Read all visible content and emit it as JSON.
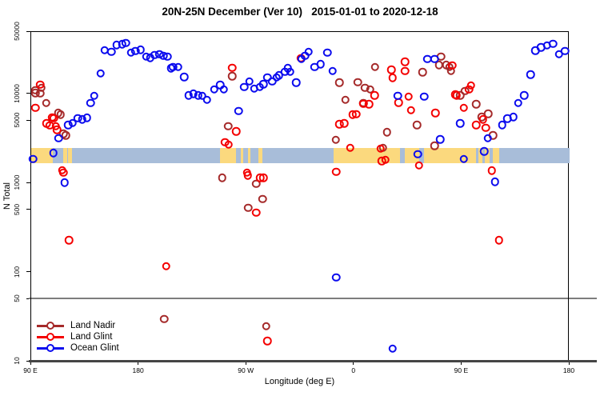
{
  "title": "20N-25N December (Ver 10)   2015-01-01 to 2020-12-18",
  "chart_data": {
    "type": "scatter",
    "title": "20N-25N December (Ver 10)   2015-01-01 to 2020-12-18",
    "xlabel": "Longitude (deg E)",
    "ylabel": "N Total",
    "x_axis": {
      "range": [
        90,
        540
      ],
      "ticks": [
        90,
        180,
        270,
        360,
        450,
        540
      ],
      "tick_labels": [
        "90 E",
        "180",
        "90 W",
        "0",
        "90 E",
        "180"
      ]
    },
    "y_axis": {
      "scale": "log",
      "range": [
        10,
        50000
      ],
      "ticks": [
        50000,
        10000,
        5000,
        1000,
        500,
        100,
        50,
        10
      ],
      "tick_labels": [
        "50000",
        "10000",
        "5000",
        "1000",
        "500",
        "100",
        "50",
        "10"
      ]
    },
    "threshold_line": {
      "value": 50,
      "color": "#7d7d7d"
    },
    "map_band": {
      "y_range": [
        1700,
        2500
      ],
      "ocean_color": "#a8bdd9",
      "land_color": "#fbd97e",
      "land_segments_deg": [
        [
          90,
          108
        ],
        [
          116.5,
          120
        ],
        [
          121,
          124
        ],
        [
          248,
          261
        ],
        [
          265.5,
          267.5
        ],
        [
          271,
          273.5
        ],
        [
          280,
          283
        ],
        [
          343,
          398
        ],
        [
          402,
          414
        ],
        [
          418,
          462
        ],
        [
          464,
          467
        ],
        [
          469,
          473
        ],
        [
          476,
          481
        ]
      ]
    },
    "legend": {
      "position": "bottom-left",
      "entries": [
        "Land Nadir",
        "Land Glint",
        "Ocean Glint"
      ]
    },
    "series": [
      {
        "name": "Land Nadir",
        "color": "#a52a2a",
        "points": [
          [
            93.5,
            11100
          ],
          [
            98.5,
            11800
          ],
          [
            97.5,
            10200
          ],
          [
            93.5,
            10300
          ],
          [
            102.5,
            7950
          ],
          [
            112.5,
            6170
          ],
          [
            114.5,
            5890
          ],
          [
            117,
            3590
          ],
          [
            119,
            3470
          ],
          [
            249.5,
            1150
          ],
          [
            278,
            990
          ],
          [
            283.5,
            670
          ],
          [
            271.5,
            533
          ],
          [
            201,
            30
          ],
          [
            286.5,
            25
          ],
          [
            258,
            16000
          ],
          [
            254.5,
            4400
          ],
          [
            377.5,
            20200
          ],
          [
            417,
            17700
          ],
          [
            432.5,
            26600
          ],
          [
            431,
            21400
          ],
          [
            437,
            21400
          ],
          [
            439.5,
            20200
          ],
          [
            441,
            18300
          ],
          [
            347.5,
            13500
          ],
          [
            363,
            13700
          ],
          [
            369,
            11800
          ],
          [
            373.5,
            11350
          ],
          [
            352.5,
            8670
          ],
          [
            367.5,
            7950
          ],
          [
            412.5,
            4540
          ],
          [
            387.5,
            3760
          ],
          [
            344.5,
            3070
          ],
          [
            384,
            2500
          ],
          [
            427,
            2640
          ],
          [
            452.5,
            10850
          ],
          [
            448.5,
            9740
          ],
          [
            462,
            7720
          ],
          [
            472,
            6060
          ],
          [
            466.5,
            5560
          ],
          [
            476,
            3470
          ]
        ]
      },
      {
        "name": "Land Glint",
        "color": "#f40000",
        "points": [
          [
            97.5,
            12800
          ],
          [
            93.5,
            7070
          ],
          [
            107.5,
            5500
          ],
          [
            103,
            4710
          ],
          [
            105.5,
            4490
          ],
          [
            109,
            5400
          ],
          [
            110.5,
            4400
          ],
          [
            111.5,
            3980
          ],
          [
            116,
            1410
          ],
          [
            117,
            1320
          ],
          [
            121.5,
            230
          ],
          [
            203,
            118
          ],
          [
            271,
            1230
          ],
          [
            281.5,
            1150
          ],
          [
            284,
            1150
          ],
          [
            278,
            470
          ],
          [
            287.5,
            17
          ],
          [
            258,
            19900
          ],
          [
            261.5,
            3830
          ],
          [
            252,
            2910
          ],
          [
            255,
            2720
          ],
          [
            270.5,
            1320
          ],
          [
            315.5,
            25500
          ],
          [
            402.5,
            23200
          ],
          [
            391,
            18900
          ],
          [
            402.5,
            18300
          ],
          [
            392,
            15300
          ],
          [
            377,
            9740
          ],
          [
            367.5,
            7830
          ],
          [
            372.5,
            7720
          ],
          [
            397,
            8100
          ],
          [
            405.5,
            9400
          ],
          [
            407.5,
            6620
          ],
          [
            428,
            6170
          ],
          [
            358.5,
            5890
          ],
          [
            361.5,
            5980
          ],
          [
            347.5,
            4610
          ],
          [
            351.5,
            4710
          ],
          [
            356.5,
            2500
          ],
          [
            382,
            2460
          ],
          [
            383,
            1790
          ],
          [
            386,
            1840
          ],
          [
            414,
            1590
          ],
          [
            345,
            1350
          ],
          [
            444.5,
            9940
          ],
          [
            442,
            21000
          ],
          [
            457.5,
            12600
          ],
          [
            456,
            11350
          ],
          [
            445.5,
            9740
          ],
          [
            451.5,
            7070
          ],
          [
            467.5,
            5210
          ],
          [
            462,
            4530
          ],
          [
            470,
            4200
          ],
          [
            475,
            1390
          ],
          [
            481,
            230
          ]
        ]
      },
      {
        "name": "Ocean Glint",
        "color": "#0b0bee",
        "points": [
          [
            151.5,
            31300
          ],
          [
            157,
            30000
          ],
          [
            161.5,
            35600
          ],
          [
            166,
            36500
          ],
          [
            169,
            37600
          ],
          [
            173.5,
            29400
          ],
          [
            177,
            30500
          ],
          [
            181.5,
            31600
          ],
          [
            186,
            26600
          ],
          [
            189.5,
            25700
          ],
          [
            193,
            27500
          ],
          [
            197,
            28100
          ],
          [
            200.5,
            27000
          ],
          [
            204,
            26600
          ],
          [
            207,
            19600
          ],
          [
            148,
            17100
          ],
          [
            142.5,
            9600
          ],
          [
            139.5,
            7950
          ],
          [
            136.5,
            5470
          ],
          [
            132.5,
            5210
          ],
          [
            129,
            5400
          ],
          [
            124.5,
            4770
          ],
          [
            121,
            4530
          ],
          [
            113,
            3230
          ],
          [
            108.5,
            2200
          ],
          [
            91.5,
            1880
          ],
          [
            208.5,
            20200
          ],
          [
            213,
            20200
          ],
          [
            218,
            15700
          ],
          [
            221.5,
            9740
          ],
          [
            225.5,
            10140
          ],
          [
            229.5,
            9740
          ],
          [
            233,
            9600
          ],
          [
            237,
            8670
          ],
          [
            243,
            11350
          ],
          [
            248,
            12770
          ],
          [
            251,
            11350
          ],
          [
            268,
            12100
          ],
          [
            272.5,
            13900
          ],
          [
            276.5,
            11600
          ],
          [
            281,
            12100
          ],
          [
            284,
            13000
          ],
          [
            287.5,
            15400
          ],
          [
            291.5,
            13900
          ],
          [
            295,
            15400
          ],
          [
            297,
            16300
          ],
          [
            302,
            17900
          ],
          [
            304.5,
            19600
          ],
          [
            306.5,
            17900
          ],
          [
            311.5,
            13500
          ],
          [
            316,
            24900
          ],
          [
            319,
            27000
          ],
          [
            322,
            30000
          ],
          [
            327,
            20200
          ],
          [
            263.5,
            6500
          ],
          [
            337.5,
            29400
          ],
          [
            332,
            21700
          ],
          [
            342,
            18300
          ],
          [
            421,
            24900
          ],
          [
            427,
            24900
          ],
          [
            396.5,
            9600
          ],
          [
            418.5,
            9400
          ],
          [
            432,
            3130
          ],
          [
            413,
            2130
          ],
          [
            511.5,
            30800
          ],
          [
            516,
            33700
          ],
          [
            521,
            35300
          ],
          [
            526,
            36800
          ],
          [
            531,
            28100
          ],
          [
            536,
            30500
          ],
          [
            507.5,
            16700
          ],
          [
            502,
            9740
          ],
          [
            497,
            7950
          ],
          [
            493,
            5560
          ],
          [
            488,
            5330
          ],
          [
            483.5,
            4530
          ],
          [
            448.5,
            4710
          ],
          [
            471.5,
            3230
          ],
          [
            468.5,
            2290
          ],
          [
            451.5,
            1880
          ],
          [
            118,
            1020
          ],
          [
            477.5,
            1040
          ],
          [
            345,
            88
          ],
          [
            392,
            14
          ]
        ]
      }
    ]
  }
}
